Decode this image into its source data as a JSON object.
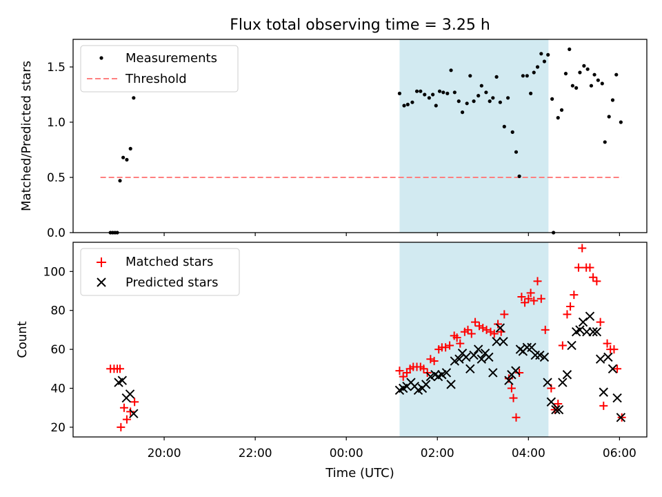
{
  "chart_data": [
    {
      "type": "scatter",
      "title": "Flux total observing time = 3.25 h",
      "xlabel": "",
      "ylabel": "Matched/Predicted stars",
      "ylim": [
        0,
        1.75
      ],
      "yticks": [
        0.0,
        0.5,
        1.0,
        1.5
      ],
      "ytick_labels": [
        "0.0",
        "0.5",
        "1.0",
        "1.5"
      ],
      "grid": false,
      "legend_position": "top-left",
      "shaded_region": {
        "x_start_h": 25.17,
        "x_end_h": 28.44,
        "color": "#add8e6"
      },
      "series": [
        {
          "name": "Measurements",
          "marker": "dot",
          "color": "#000000",
          "points": [
            [
              18.82,
              0
            ],
            [
              18.87,
              0
            ],
            [
              18.92,
              0
            ],
            [
              18.97,
              0
            ],
            [
              19.03,
              0.47
            ],
            [
              19.1,
              0.68
            ],
            [
              19.18,
              0.66
            ],
            [
              19.26,
              0.76
            ],
            [
              19.33,
              1.22
            ],
            [
              25.17,
              1.26
            ],
            [
              25.27,
              1.15
            ],
            [
              25.35,
              1.16
            ],
            [
              25.45,
              1.18
            ],
            [
              25.55,
              1.28
            ],
            [
              25.63,
              1.28
            ],
            [
              25.72,
              1.25
            ],
            [
              25.82,
              1.22
            ],
            [
              25.9,
              1.25
            ],
            [
              25.97,
              1.15
            ],
            [
              26.05,
              1.28
            ],
            [
              26.13,
              1.27
            ],
            [
              26.22,
              1.26
            ],
            [
              26.3,
              1.47
            ],
            [
              26.38,
              1.27
            ],
            [
              26.47,
              1.19
            ],
            [
              26.55,
              1.09
            ],
            [
              26.65,
              1.17
            ],
            [
              26.72,
              1.42
            ],
            [
              26.8,
              1.19
            ],
            [
              26.9,
              1.24
            ],
            [
              26.97,
              1.33
            ],
            [
              27.07,
              1.27
            ],
            [
              27.15,
              1.19
            ],
            [
              27.22,
              1.22
            ],
            [
              27.3,
              1.41
            ],
            [
              27.38,
              1.18
            ],
            [
              27.47,
              0.96
            ],
            [
              27.55,
              1.22
            ],
            [
              27.65,
              0.91
            ],
            [
              27.73,
              0.73
            ],
            [
              27.8,
              0.51
            ],
            [
              27.88,
              1.42
            ],
            [
              27.97,
              1.42
            ],
            [
              28.05,
              1.26
            ],
            [
              28.12,
              1.45
            ],
            [
              28.2,
              1.5
            ],
            [
              28.28,
              1.62
            ],
            [
              28.35,
              1.55
            ],
            [
              28.43,
              1.61
            ],
            [
              28.52,
              1.21
            ],
            [
              28.55,
              0
            ],
            [
              28.65,
              1.04
            ],
            [
              28.73,
              1.11
            ],
            [
              28.82,
              1.44
            ],
            [
              28.9,
              1.66
            ],
            [
              28.97,
              1.33
            ],
            [
              29.05,
              1.31
            ],
            [
              29.13,
              1.45
            ],
            [
              29.22,
              1.51
            ],
            [
              29.3,
              1.48
            ],
            [
              29.38,
              1.33
            ],
            [
              29.45,
              1.43
            ],
            [
              29.53,
              1.38
            ],
            [
              29.62,
              1.35
            ],
            [
              29.68,
              0.82
            ],
            [
              29.77,
              1.05
            ],
            [
              29.85,
              1.2
            ],
            [
              29.93,
              1.43
            ],
            [
              30.03,
              1.0
            ]
          ]
        },
        {
          "name": "Threshold",
          "marker": "dashed-line",
          "color": "#ff7f7f",
          "points": [
            [
              18.6,
              0.5
            ],
            [
              30.05,
              0.5
            ]
          ]
        }
      ]
    },
    {
      "type": "scatter",
      "title": "",
      "xlabel": "Time (UTC)",
      "ylabel": "Count",
      "xlim_h": [
        18.0,
        30.6
      ],
      "xticks_h": [
        20,
        22,
        24,
        26,
        28,
        30
      ],
      "xtick_labels": [
        "20:00",
        "22:00",
        "00:00",
        "02:00",
        "04:00",
        "06:00"
      ],
      "ylim": [
        15,
        115
      ],
      "yticks": [
        20,
        40,
        60,
        80,
        100
      ],
      "ytick_labels": [
        "20",
        "40",
        "60",
        "80",
        "100"
      ],
      "grid": false,
      "legend_position": "top-left",
      "shaded_region": {
        "x_start_h": 25.17,
        "x_end_h": 28.44,
        "color": "#add8e6"
      },
      "series": [
        {
          "name": "Matched stars",
          "marker": "plus",
          "color": "#ff0000",
          "points": [
            [
              18.82,
              50
            ],
            [
              18.9,
              50
            ],
            [
              18.97,
              50
            ],
            [
              19.03,
              50
            ],
            [
              19.05,
              20
            ],
            [
              19.12,
              30
            ],
            [
              19.18,
              24
            ],
            [
              19.26,
              28
            ],
            [
              19.35,
              33
            ],
            [
              25.17,
              49
            ],
            [
              25.25,
              46
            ],
            [
              25.33,
              48
            ],
            [
              25.4,
              50
            ],
            [
              25.47,
              51
            ],
            [
              25.55,
              51
            ],
            [
              25.63,
              51
            ],
            [
              25.7,
              50
            ],
            [
              25.78,
              48
            ],
            [
              25.85,
              55
            ],
            [
              25.93,
              54
            ],
            [
              26.03,
              60
            ],
            [
              26.1,
              61
            ],
            [
              26.18,
              61
            ],
            [
              26.27,
              62
            ],
            [
              26.37,
              67
            ],
            [
              26.43,
              66
            ],
            [
              26.5,
              63
            ],
            [
              26.6,
              69
            ],
            [
              26.67,
              70
            ],
            [
              26.75,
              68
            ],
            [
              26.83,
              74
            ],
            [
              26.92,
              72
            ],
            [
              27.0,
              71
            ],
            [
              27.08,
              70
            ],
            [
              27.17,
              69
            ],
            [
              27.25,
              68
            ],
            [
              27.33,
              73
            ],
            [
              27.4,
              69
            ],
            [
              27.47,
              78
            ],
            [
              27.57,
              45
            ],
            [
              27.63,
              40
            ],
            [
              27.67,
              35
            ],
            [
              27.73,
              25
            ],
            [
              27.8,
              48
            ],
            [
              27.85,
              87
            ],
            [
              27.92,
              84
            ],
            [
              28.0,
              86
            ],
            [
              28.05,
              89
            ],
            [
              28.12,
              85
            ],
            [
              28.2,
              95
            ],
            [
              28.28,
              86
            ],
            [
              28.37,
              70
            ],
            [
              28.5,
              40
            ],
            [
              28.58,
              29
            ],
            [
              28.65,
              32
            ],
            [
              28.75,
              62
            ],
            [
              28.85,
              78
            ],
            [
              28.92,
              82
            ],
            [
              29.0,
              88
            ],
            [
              29.1,
              102
            ],
            [
              29.18,
              112
            ],
            [
              29.27,
              102
            ],
            [
              29.35,
              102
            ],
            [
              29.42,
              97
            ],
            [
              29.5,
              95
            ],
            [
              29.58,
              74
            ],
            [
              29.65,
              31
            ],
            [
              29.73,
              63
            ],
            [
              29.8,
              60
            ],
            [
              29.88,
              60
            ],
            [
              29.95,
              50
            ],
            [
              30.05,
              25
            ]
          ]
        },
        {
          "name": "Predicted stars",
          "marker": "x",
          "color": "#000000",
          "points": [
            [
              19.0,
              43
            ],
            [
              19.08,
              44
            ],
            [
              19.17,
              35
            ],
            [
              19.25,
              37
            ],
            [
              19.33,
              27
            ],
            [
              25.17,
              39
            ],
            [
              25.25,
              40
            ],
            [
              25.33,
              41
            ],
            [
              25.42,
              43
            ],
            [
              25.5,
              41
            ],
            [
              25.58,
              39
            ],
            [
              25.67,
              40
            ],
            [
              25.75,
              42
            ],
            [
              25.85,
              46
            ],
            [
              25.95,
              47
            ],
            [
              26.02,
              46
            ],
            [
              26.1,
              47
            ],
            [
              26.2,
              48
            ],
            [
              26.3,
              42
            ],
            [
              26.38,
              54
            ],
            [
              26.48,
              55
            ],
            [
              26.55,
              58
            ],
            [
              26.63,
              56
            ],
            [
              26.72,
              50
            ],
            [
              26.8,
              57
            ],
            [
              26.9,
              60
            ],
            [
              26.97,
              55
            ],
            [
              27.05,
              58
            ],
            [
              27.13,
              56
            ],
            [
              27.22,
              48
            ],
            [
              27.3,
              64
            ],
            [
              27.38,
              71
            ],
            [
              27.45,
              64
            ],
            [
              27.57,
              44
            ],
            [
              27.63,
              47
            ],
            [
              27.72,
              49
            ],
            [
              27.82,
              60
            ],
            [
              27.88,
              59
            ],
            [
              27.97,
              61
            ],
            [
              28.07,
              61
            ],
            [
              28.15,
              57
            ],
            [
              28.25,
              57
            ],
            [
              28.35,
              56
            ],
            [
              28.42,
              43
            ],
            [
              28.5,
              33
            ],
            [
              28.6,
              29
            ],
            [
              28.67,
              29
            ],
            [
              28.75,
              43
            ],
            [
              28.85,
              47
            ],
            [
              28.95,
              62
            ],
            [
              29.05,
              69
            ],
            [
              29.13,
              70
            ],
            [
              29.2,
              74
            ],
            [
              29.28,
              69
            ],
            [
              29.35,
              77
            ],
            [
              29.42,
              69
            ],
            [
              29.5,
              69
            ],
            [
              29.58,
              55
            ],
            [
              29.65,
              38
            ],
            [
              29.75,
              56
            ],
            [
              29.85,
              50
            ],
            [
              29.95,
              35
            ],
            [
              30.03,
              25
            ]
          ]
        }
      ]
    }
  ]
}
